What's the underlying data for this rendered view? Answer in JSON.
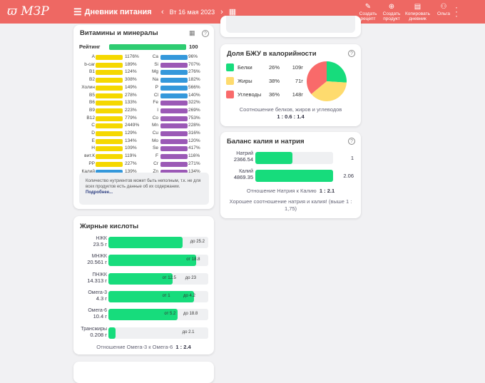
{
  "header": {
    "logo": "ϖ МЗР",
    "title": "Дневник питания",
    "date": "Вт 16 мая 2023",
    "actions": [
      {
        "l1": "Создать",
        "l2": "рецепт",
        "icon": "recipe-icon"
      },
      {
        "l1": "Создать",
        "l2": "продукт",
        "icon": "product-icon"
      },
      {
        "l1": "Копировать",
        "l2": "дневник",
        "icon": "copy-icon"
      },
      {
        "l1": "Ольга",
        "l2": "",
        "icon": "user-icon"
      }
    ],
    "colors": {
      "header": "#ee6863"
    }
  },
  "vitamins": {
    "title": "Витамины и минералы",
    "rating_label": "Рейтинг",
    "rating": "100",
    "rating_value": 100,
    "left": [
      [
        "A",
        "1176%",
        "y"
      ],
      [
        "b-car",
        "189%",
        "y"
      ],
      [
        "B1",
        "124%",
        "y"
      ],
      [
        "B2",
        "308%",
        "y"
      ],
      [
        "Холин",
        "149%",
        "y"
      ],
      [
        "B5",
        "278%",
        "y"
      ],
      [
        "B6",
        "133%",
        "y"
      ],
      [
        "B9",
        "223%",
        "y"
      ],
      [
        "B12",
        "779%",
        "y"
      ],
      [
        "C",
        "2449%",
        "y"
      ],
      [
        "D",
        "129%",
        "y"
      ],
      [
        "E",
        "134%",
        "y"
      ],
      [
        "H",
        "109%",
        "y"
      ],
      [
        "вит.К",
        "119%",
        "y"
      ],
      [
        "PP",
        "227%",
        "y"
      ],
      [
        "Калий",
        "139%",
        "b"
      ]
    ],
    "right": [
      [
        "Ca",
        "96%",
        "b"
      ],
      [
        "Si",
        "707%",
        "p"
      ],
      [
        "Mg",
        "276%",
        "b"
      ],
      [
        "Na",
        "182%",
        "b"
      ],
      [
        "P",
        "566%",
        "b"
      ],
      [
        "Cl",
        "140%",
        "b"
      ],
      [
        "Fe",
        "322%",
        "p"
      ],
      [
        "I",
        "269%",
        "p"
      ],
      [
        "Co",
        "753%",
        "p"
      ],
      [
        "Mn",
        "228%",
        "p"
      ],
      [
        "Cu",
        "316%",
        "p"
      ],
      [
        "Mo",
        "120%",
        "p"
      ],
      [
        "Se",
        "417%",
        "p"
      ],
      [
        "F",
        "116%",
        "p"
      ],
      [
        "Cr",
        "271%",
        "p"
      ],
      [
        "Zn",
        "134%",
        "p"
      ]
    ],
    "note": "Количество нутриентов может быть неполным, т.к. не для всех продуктов есть данные об их содержании.",
    "note_link": "Подробнее...",
    "colors": {
      "y": "#f5d800",
      "b": "#3498db",
      "p": "#9b59b6"
    }
  },
  "fats": {
    "title": "Жирные кислоты",
    "rows": [
      {
        "name": "НЖК",
        "value": "23.5 г",
        "fill": 74,
        "marks": [
          {
            "t": "до 25.2",
            "pos": 82
          }
        ]
      },
      {
        "name": "МНЖК",
        "value": "20.561 г",
        "fill": 88,
        "marks": [
          {
            "t": "от 18.8",
            "pos": 78
          }
        ]
      },
      {
        "name": "ПНЖК",
        "value": "14.313 г",
        "fill": 64,
        "marks": [
          {
            "t": "от 12.5",
            "pos": 54
          },
          {
            "t": "до 23",
            "pos": 77
          }
        ]
      },
      {
        "name": "Омега-3",
        "value": "4.3 г",
        "fill": 86,
        "marks": [
          {
            "t": "от 1",
            "pos": 54
          },
          {
            "t": "до 4.2",
            "pos": 75
          }
        ]
      },
      {
        "name": "Омега-6",
        "value": "10.4 г",
        "fill": 69,
        "marks": [
          {
            "t": "от 5.2",
            "pos": 56
          },
          {
            "t": "до 18.8",
            "pos": 75
          }
        ]
      },
      {
        "name": "Трансжиры",
        "value": "0.208 г",
        "fill": 7,
        "marks": [
          {
            "t": "до 2.1",
            "pos": 74
          }
        ]
      }
    ],
    "ratio_label": "Отношение Омега-3 к Омега-6",
    "ratio": "1 : 2.4"
  },
  "bju": {
    "title": "Доля БЖУ в калорийности",
    "items": [
      {
        "name": "Белки",
        "pct": "26%",
        "g": "109г",
        "value": 26,
        "color": "#17dc7c"
      },
      {
        "name": "Жиры",
        "pct": "38%",
        "g": "71г",
        "value": 38,
        "color": "#fedb6e"
      },
      {
        "name": "Углеводы",
        "pct": "36%",
        "g": "148г",
        "value": 36,
        "color": "#f96a6a"
      }
    ],
    "ratio_label": "Соотношение белков, жиров и углеводов",
    "ratio": "1 : 0.6 : 1.4"
  },
  "kna": {
    "title": "Баланс калия и натрия",
    "rows": [
      {
        "name": "Натрий",
        "value": "2366.54",
        "ratio": "1",
        "fill": 48
      },
      {
        "name": "Калий",
        "value": "4869.35",
        "ratio": "2.06",
        "fill": 100
      }
    ],
    "ratio_label": "Отношение Натрия к Калию",
    "ratio": "1 : 2.1",
    "msg": "Хорошее соотношение натрия и калия! (выше 1 : 1,75)"
  }
}
